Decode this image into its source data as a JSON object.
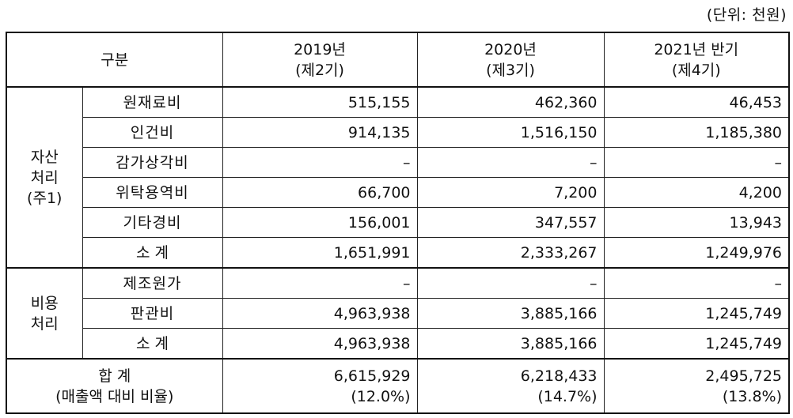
{
  "unit_note": "(단위: 천원)",
  "header": {
    "category": "구분",
    "col1_year": "2019년",
    "col1_period": "(제2기)",
    "col2_year": "2020년",
    "col2_period": "(제3기)",
    "col3_year": "2021년 반기",
    "col3_period": "(제4기)"
  },
  "asset_group": {
    "label_line1": "자산",
    "label_line2": "처리",
    "label_line3": "(주1)",
    "rows": [
      {
        "label": "원재료비",
        "v2019": "515,155",
        "v2020": "462,360",
        "v2021": "46,453"
      },
      {
        "label": "인건비",
        "v2019": "914,135",
        "v2020": "1,516,150",
        "v2021": "1,185,380"
      },
      {
        "label": "감가상각비",
        "v2019": "–",
        "v2020": "–",
        "v2021": "–"
      },
      {
        "label": "위탁용역비",
        "v2019": "66,700",
        "v2020": "7,200",
        "v2021": "4,200"
      },
      {
        "label": "기타경비",
        "v2019": "156,001",
        "v2020": "347,557",
        "v2021": "13,943"
      },
      {
        "label": "소 계",
        "v2019": "1,651,991",
        "v2020": "2,333,267",
        "v2021": "1,249,976"
      }
    ]
  },
  "expense_group": {
    "label_line1": "비용",
    "label_line2": "처리",
    "rows": [
      {
        "label": "제조원가",
        "v2019": "–",
        "v2020": "–",
        "v2021": "–"
      },
      {
        "label": "판관비",
        "v2019": "4,963,938",
        "v2020": "3,885,166",
        "v2021": "1,245,749"
      },
      {
        "label": "소 계",
        "v2019": "4,963,938",
        "v2020": "3,885,166",
        "v2021": "1,245,749"
      }
    ]
  },
  "total": {
    "label_line1": "합 계",
    "label_line2": "(매출액 대비 비율)",
    "v2019": "6,615,929",
    "v2019_ratio": "(12.0%)",
    "v2020": "6,218,433",
    "v2020_ratio": "(14.7%)",
    "v2021": "2,495,725",
    "v2021_ratio": "(13.8%)"
  }
}
